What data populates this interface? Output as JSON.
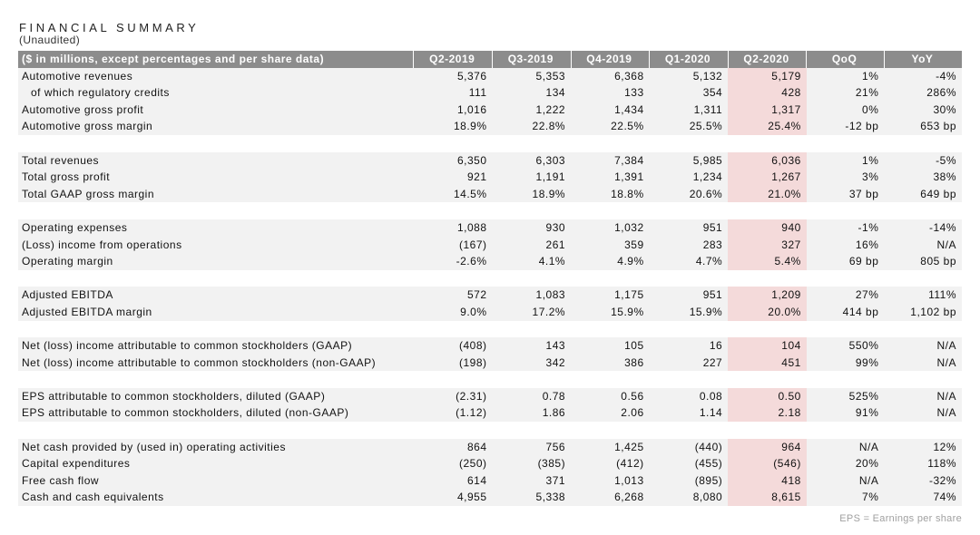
{
  "title": "FINANCIAL SUMMARY",
  "subtitle": "(Unaudited)",
  "header": [
    "($ in millions, except percentages and per share data)",
    "Q2-2019",
    "Q3-2019",
    "Q4-2019",
    "Q1-2020",
    "Q2-2020",
    "QoQ",
    "YoY"
  ],
  "colors": {
    "header_bg": "#8c8c8c",
    "row_bg": "#f2f2f2",
    "highlight_bg": "#f4dada"
  },
  "highlight_column": "Q2-2020",
  "groups": [
    [
      [
        "Automotive revenues",
        "5,376",
        "5,353",
        "6,368",
        "5,132",
        "5,179",
        "1%",
        "-4%"
      ],
      [
        "  of which regulatory credits",
        "111",
        "134",
        "133",
        "354",
        "428",
        "21%",
        "286%"
      ],
      [
        "Automotive gross profit",
        "1,016",
        "1,222",
        "1,434",
        "1,311",
        "1,317",
        "0%",
        "30%"
      ],
      [
        "Automotive gross margin",
        "18.9%",
        "22.8%",
        "22.5%",
        "25.5%",
        "25.4%",
        "-12 bp",
        "653 bp"
      ]
    ],
    [
      [
        "Total revenues",
        "6,350",
        "6,303",
        "7,384",
        "5,985",
        "6,036",
        "1%",
        "-5%"
      ],
      [
        "Total gross profit",
        "921",
        "1,191",
        "1,391",
        "1,234",
        "1,267",
        "3%",
        "38%"
      ],
      [
        "Total GAAP gross margin",
        "14.5%",
        "18.9%",
        "18.8%",
        "20.6%",
        "21.0%",
        "37 bp",
        "649 bp"
      ]
    ],
    [
      [
        "Operating expenses",
        "1,088",
        "930",
        "1,032",
        "951",
        "940",
        "-1%",
        "-14%"
      ],
      [
        "(Loss) income from operations",
        "(167)",
        "261",
        "359",
        "283",
        "327",
        "16%",
        "N/A"
      ],
      [
        "Operating margin",
        "-2.6%",
        "4.1%",
        "4.9%",
        "4.7%",
        "5.4%",
        "69 bp",
        "805 bp"
      ]
    ],
    [
      [
        "Adjusted EBITDA",
        "572",
        "1,083",
        "1,175",
        "951",
        "1,209",
        "27%",
        "111%"
      ],
      [
        "Adjusted EBITDA margin",
        "9.0%",
        "17.2%",
        "15.9%",
        "15.9%",
        "20.0%",
        "414 bp",
        "1,102 bp"
      ]
    ],
    [
      [
        "Net (loss) income attributable to common stockholders (GAAP)",
        "(408)",
        "143",
        "105",
        "16",
        "104",
        "550%",
        "N/A"
      ],
      [
        "Net (loss) income attributable to common stockholders (non-GAAP)",
        "(198)",
        "342",
        "386",
        "227",
        "451",
        "99%",
        "N/A"
      ]
    ],
    [
      [
        "EPS attributable to common stockholders, diluted (GAAP)",
        "(2.31)",
        "0.78",
        "0.56",
        "0.08",
        "0.50",
        "525%",
        "N/A"
      ],
      [
        "EPS attributable to common stockholders, diluted (non-GAAP)",
        "(1.12)",
        "1.86",
        "2.06",
        "1.14",
        "2.18",
        "91%",
        "N/A"
      ]
    ],
    [
      [
        "Net cash provided by (used in) operating activities",
        "864",
        "756",
        "1,425",
        "(440)",
        "964",
        "N/A",
        "12%"
      ],
      [
        "Capital expenditures",
        "(250)",
        "(385)",
        "(412)",
        "(455)",
        "(546)",
        "20%",
        "118%"
      ],
      [
        "Free cash flow",
        "614",
        "371",
        "1,013",
        "(895)",
        "418",
        "N/A",
        "-32%"
      ],
      [
        "Cash and cash equivalents",
        "4,955",
        "5,338",
        "6,268",
        "8,080",
        "8,615",
        "7%",
        "74%"
      ]
    ]
  ],
  "footnote": "EPS = Earnings per share"
}
